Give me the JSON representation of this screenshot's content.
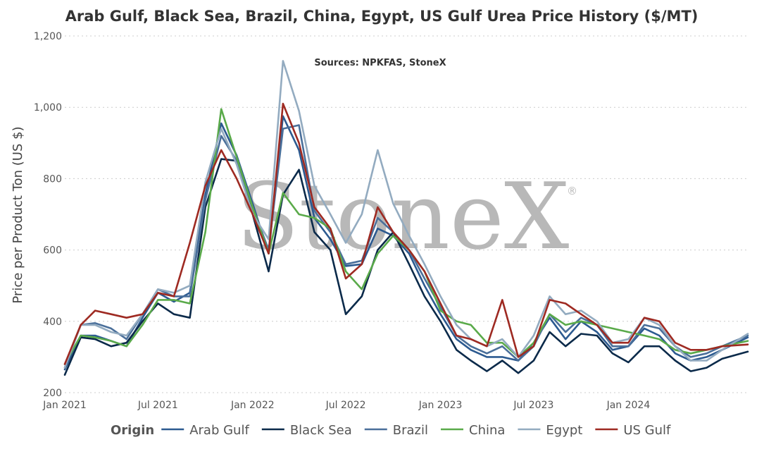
{
  "chart_data": {
    "type": "line",
    "title": "Arab Gulf, Black Sea, Brazil, China, Egypt, US Gulf Urea Price History ($/MT)",
    "subtitle": "Sources: NPKFAS, StoneX",
    "watermark": "StoneX",
    "watermark_mark": "®",
    "ylabel": "Price per Product Ton (US $)",
    "ylim": [
      200,
      1200
    ],
    "yticks": [
      200,
      400,
      600,
      800,
      1000,
      1200
    ],
    "ytick_labels": [
      "200",
      "400",
      "600",
      "800",
      "1,000",
      "1,200"
    ],
    "xlim": [
      "2021-01-01",
      "2024-08-20"
    ],
    "xticks": [
      "2021-01-01",
      "2021-07-01",
      "2022-01-01",
      "2022-07-01",
      "2023-01-01",
      "2023-07-01",
      "2024-01-01"
    ],
    "xtick_labels": [
      "Jan 2021",
      "Jul 2021",
      "Jan 2022",
      "Jul 2022",
      "Jan 2023",
      "Jul 2023",
      "Jan 2024"
    ],
    "grid": "horizontal dotted",
    "legend": {
      "title": "Origin",
      "position": "bottom"
    },
    "series": [
      {
        "name": "Arab Gulf",
        "color": "#2c5a90",
        "points": [
          [
            "2021-01-01",
            265
          ],
          [
            "2021-02-01",
            360
          ],
          [
            "2021-03-01",
            360
          ],
          [
            "2021-04-01",
            345
          ],
          [
            "2021-05-01",
            330
          ],
          [
            "2021-06-01",
            410
          ],
          [
            "2021-07-01",
            480
          ],
          [
            "2021-08-01",
            455
          ],
          [
            "2021-09-01",
            480
          ],
          [
            "2021-10-01",
            755
          ],
          [
            "2021-11-01",
            955
          ],
          [
            "2021-12-01",
            865
          ],
          [
            "2022-01-01",
            730
          ],
          [
            "2022-02-01",
            590
          ],
          [
            "2022-03-01",
            975
          ],
          [
            "2022-04-01",
            880
          ],
          [
            "2022-05-01",
            690
          ],
          [
            "2022-06-01",
            630
          ],
          [
            "2022-07-01",
            555
          ],
          [
            "2022-08-01",
            560
          ],
          [
            "2022-09-01",
            660
          ],
          [
            "2022-10-01",
            640
          ],
          [
            "2022-11-01",
            590
          ],
          [
            "2022-12-01",
            500
          ],
          [
            "2023-01-01",
            420
          ],
          [
            "2023-02-01",
            350
          ],
          [
            "2023-03-01",
            320
          ],
          [
            "2023-04-01",
            300
          ],
          [
            "2023-05-01",
            300
          ],
          [
            "2023-06-01",
            290
          ],
          [
            "2023-07-01",
            340
          ],
          [
            "2023-08-01",
            410
          ],
          [
            "2023-09-01",
            350
          ],
          [
            "2023-10-01",
            400
          ],
          [
            "2023-11-01",
            370
          ],
          [
            "2023-12-01",
            320
          ],
          [
            "2024-01-01",
            330
          ],
          [
            "2024-02-01",
            380
          ],
          [
            "2024-03-01",
            360
          ],
          [
            "2024-04-01",
            310
          ],
          [
            "2024-05-01",
            290
          ],
          [
            "2024-06-01",
            300
          ],
          [
            "2024-07-01",
            320
          ],
          [
            "2024-08-20",
            355
          ]
        ]
      },
      {
        "name": "Black Sea",
        "color": "#0b2a4a",
        "points": [
          [
            "2021-01-01",
            250
          ],
          [
            "2021-02-01",
            355
          ],
          [
            "2021-03-01",
            350
          ],
          [
            "2021-04-01",
            330
          ],
          [
            "2021-05-01",
            340
          ],
          [
            "2021-06-01",
            400
          ],
          [
            "2021-07-01",
            450
          ],
          [
            "2021-08-01",
            420
          ],
          [
            "2021-09-01",
            410
          ],
          [
            "2021-10-01",
            720
          ],
          [
            "2021-11-01",
            855
          ],
          [
            "2021-12-01",
            850
          ],
          [
            "2022-01-01",
            700
          ],
          [
            "2022-02-01",
            540
          ],
          [
            "2022-03-01",
            755
          ],
          [
            "2022-04-01",
            825
          ],
          [
            "2022-05-01",
            650
          ],
          [
            "2022-06-01",
            600
          ],
          [
            "2022-07-01",
            420
          ],
          [
            "2022-08-01",
            470
          ],
          [
            "2022-09-01",
            600
          ],
          [
            "2022-10-01",
            650
          ],
          [
            "2022-11-01",
            560
          ],
          [
            "2022-12-01",
            470
          ],
          [
            "2023-01-01",
            400
          ],
          [
            "2023-02-01",
            320
          ],
          [
            "2023-03-01",
            290
          ],
          [
            "2023-04-01",
            260
          ],
          [
            "2023-05-01",
            290
          ],
          [
            "2023-06-01",
            255
          ],
          [
            "2023-07-01",
            290
          ],
          [
            "2023-08-01",
            370
          ],
          [
            "2023-09-01",
            330
          ],
          [
            "2023-10-01",
            365
          ],
          [
            "2023-11-01",
            360
          ],
          [
            "2023-12-01",
            310
          ],
          [
            "2024-01-01",
            285
          ],
          [
            "2024-02-01",
            330
          ],
          [
            "2024-03-01",
            330
          ],
          [
            "2024-04-01",
            290
          ],
          [
            "2024-05-01",
            260
          ],
          [
            "2024-06-01",
            270
          ],
          [
            "2024-07-01",
            295
          ],
          [
            "2024-08-20",
            315
          ]
        ]
      },
      {
        "name": "Brazil",
        "color": "#4a6f9a",
        "points": [
          [
            "2021-01-01",
            270
          ],
          [
            "2021-02-01",
            390
          ],
          [
            "2021-03-01",
            395
          ],
          [
            "2021-04-01",
            380
          ],
          [
            "2021-05-01",
            350
          ],
          [
            "2021-06-01",
            420
          ],
          [
            "2021-07-01",
            490
          ],
          [
            "2021-08-01",
            470
          ],
          [
            "2021-09-01",
            470
          ],
          [
            "2021-10-01",
            740
          ],
          [
            "2021-11-01",
            920
          ],
          [
            "2021-12-01",
            850
          ],
          [
            "2022-01-01",
            720
          ],
          [
            "2022-02-01",
            600
          ],
          [
            "2022-03-01",
            940
          ],
          [
            "2022-04-01",
            950
          ],
          [
            "2022-05-01",
            710
          ],
          [
            "2022-06-01",
            650
          ],
          [
            "2022-07-01",
            560
          ],
          [
            "2022-08-01",
            570
          ],
          [
            "2022-09-01",
            690
          ],
          [
            "2022-10-01",
            650
          ],
          [
            "2022-11-01",
            600
          ],
          [
            "2022-12-01",
            520
          ],
          [
            "2023-01-01",
            440
          ],
          [
            "2023-02-01",
            360
          ],
          [
            "2023-03-01",
            330
          ],
          [
            "2023-04-01",
            310
          ],
          [
            "2023-05-01",
            330
          ],
          [
            "2023-06-01",
            290
          ],
          [
            "2023-07-01",
            330
          ],
          [
            "2023-08-01",
            420
          ],
          [
            "2023-09-01",
            370
          ],
          [
            "2023-10-01",
            410
          ],
          [
            "2023-11-01",
            390
          ],
          [
            "2023-12-01",
            330
          ],
          [
            "2024-01-01",
            330
          ],
          [
            "2024-02-01",
            390
          ],
          [
            "2024-03-01",
            380
          ],
          [
            "2024-04-01",
            330
          ],
          [
            "2024-05-01",
            300
          ],
          [
            "2024-06-01",
            310
          ],
          [
            "2024-07-01",
            330
          ],
          [
            "2024-08-20",
            360
          ]
        ]
      },
      {
        "name": "China",
        "color": "#5aaa4a",
        "points": [
          [
            "2021-01-01",
            280
          ],
          [
            "2021-02-01",
            360
          ],
          [
            "2021-03-01",
            355
          ],
          [
            "2021-04-01",
            345
          ],
          [
            "2021-05-01",
            330
          ],
          [
            "2021-06-01",
            390
          ],
          [
            "2021-07-01",
            460
          ],
          [
            "2021-08-01",
            460
          ],
          [
            "2021-09-01",
            450
          ],
          [
            "2021-10-01",
            650
          ],
          [
            "2021-11-01",
            995
          ],
          [
            "2021-12-01",
            860
          ],
          [
            "2022-01-01",
            720
          ],
          [
            "2022-02-01",
            590
          ],
          [
            "2022-03-01",
            760
          ],
          [
            "2022-04-01",
            700
          ],
          [
            "2022-05-01",
            690
          ],
          [
            "2022-06-01",
            660
          ],
          [
            "2022-07-01",
            540
          ],
          [
            "2022-08-01",
            490
          ],
          [
            "2022-09-01",
            590
          ],
          [
            "2022-10-01",
            640
          ],
          [
            "2022-11-01",
            600
          ],
          [
            "2022-12-01",
            540
          ],
          [
            "2023-01-01",
            430
          ],
          [
            "2023-02-01",
            400
          ],
          [
            "2023-03-01",
            390
          ],
          [
            "2023-04-01",
            340
          ],
          [
            "2023-05-01",
            340
          ],
          [
            "2023-06-01",
            300
          ],
          [
            "2023-07-01",
            340
          ],
          [
            "2023-08-01",
            420
          ],
          [
            "2023-09-01",
            390
          ],
          [
            "2023-10-01",
            400
          ],
          [
            "2023-11-01",
            390
          ],
          [
            "2023-12-01",
            380
          ],
          [
            "2024-01-01",
            370
          ],
          [
            "2024-02-01",
            360
          ],
          [
            "2024-03-01",
            350
          ],
          [
            "2024-04-01",
            320
          ],
          [
            "2024-05-01",
            310
          ],
          [
            "2024-06-01",
            320
          ],
          [
            "2024-07-01",
            330
          ],
          [
            "2024-08-20",
            345
          ]
        ]
      },
      {
        "name": "Egypt",
        "color": "#93abc0",
        "points": [
          [
            "2021-01-01",
            270
          ],
          [
            "2021-02-01",
            390
          ],
          [
            "2021-03-01",
            390
          ],
          [
            "2021-04-01",
            370
          ],
          [
            "2021-05-01",
            360
          ],
          [
            "2021-06-01",
            420
          ],
          [
            "2021-07-01",
            490
          ],
          [
            "2021-08-01",
            480
          ],
          [
            "2021-09-01",
            500
          ],
          [
            "2021-10-01",
            790
          ],
          [
            "2021-11-01",
            940
          ],
          [
            "2021-12-01",
            840
          ],
          [
            "2022-01-01",
            700
          ],
          [
            "2022-02-01",
            630
          ],
          [
            "2022-03-01",
            1130
          ],
          [
            "2022-04-01",
            990
          ],
          [
            "2022-05-01",
            780
          ],
          [
            "2022-06-01",
            700
          ],
          [
            "2022-07-01",
            620
          ],
          [
            "2022-08-01",
            700
          ],
          [
            "2022-09-01",
            880
          ],
          [
            "2022-10-01",
            730
          ],
          [
            "2022-11-01",
            640
          ],
          [
            "2022-12-01",
            560
          ],
          [
            "2023-01-01",
            470
          ],
          [
            "2023-02-01",
            390
          ],
          [
            "2023-03-01",
            350
          ],
          [
            "2023-04-01",
            330
          ],
          [
            "2023-05-01",
            350
          ],
          [
            "2023-06-01",
            300
          ],
          [
            "2023-07-01",
            360
          ],
          [
            "2023-08-01",
            470
          ],
          [
            "2023-09-01",
            420
          ],
          [
            "2023-10-01",
            430
          ],
          [
            "2023-11-01",
            400
          ],
          [
            "2023-12-01",
            340
          ],
          [
            "2024-01-01",
            350
          ],
          [
            "2024-02-01",
            410
          ],
          [
            "2024-03-01",
            390
          ],
          [
            "2024-04-01",
            330
          ],
          [
            "2024-05-01",
            290
          ],
          [
            "2024-06-01",
            290
          ],
          [
            "2024-07-01",
            320
          ],
          [
            "2024-08-20",
            365
          ]
        ]
      },
      {
        "name": "US Gulf",
        "color": "#9e2a22",
        "points": [
          [
            "2021-01-01",
            280
          ],
          [
            "2021-02-01",
            390
          ],
          [
            "2021-03-01",
            430
          ],
          [
            "2021-04-01",
            420
          ],
          [
            "2021-05-01",
            410
          ],
          [
            "2021-06-01",
            420
          ],
          [
            "2021-07-01",
            480
          ],
          [
            "2021-08-01",
            470
          ],
          [
            "2021-09-01",
            620
          ],
          [
            "2021-10-01",
            780
          ],
          [
            "2021-11-01",
            880
          ],
          [
            "2021-12-01",
            800
          ],
          [
            "2022-01-01",
            700
          ],
          [
            "2022-02-01",
            590
          ],
          [
            "2022-03-01",
            1010
          ],
          [
            "2022-04-01",
            900
          ],
          [
            "2022-05-01",
            720
          ],
          [
            "2022-06-01",
            660
          ],
          [
            "2022-07-01",
            520
          ],
          [
            "2022-08-01",
            560
          ],
          [
            "2022-09-01",
            720
          ],
          [
            "2022-10-01",
            650
          ],
          [
            "2022-11-01",
            600
          ],
          [
            "2022-12-01",
            540
          ],
          [
            "2023-01-01",
            450
          ],
          [
            "2023-02-01",
            360
          ],
          [
            "2023-03-01",
            350
          ],
          [
            "2023-04-01",
            330
          ],
          [
            "2023-05-01",
            460
          ],
          [
            "2023-06-01",
            300
          ],
          [
            "2023-07-01",
            330
          ],
          [
            "2023-08-01",
            460
          ],
          [
            "2023-09-01",
            450
          ],
          [
            "2023-10-01",
            420
          ],
          [
            "2023-11-01",
            390
          ],
          [
            "2023-12-01",
            340
          ],
          [
            "2024-01-01",
            340
          ],
          [
            "2024-02-01",
            410
          ],
          [
            "2024-03-01",
            400
          ],
          [
            "2024-04-01",
            340
          ],
          [
            "2024-05-01",
            320
          ],
          [
            "2024-06-01",
            320
          ],
          [
            "2024-07-01",
            330
          ],
          [
            "2024-08-20",
            335
          ]
        ]
      }
    ]
  }
}
